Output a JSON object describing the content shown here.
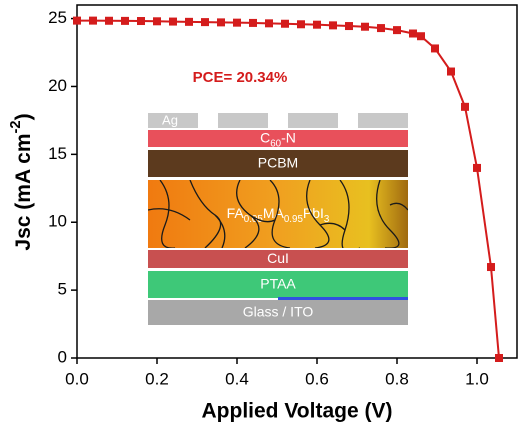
{
  "chart_data": {
    "type": "line",
    "x_label": "Applied Voltage (V)",
    "y_label": [
      "Jsc (mA cm",
      "-2",
      ")"
    ],
    "annotation": "PCE= 20.34%",
    "color": "#d41c1c",
    "series": [
      {
        "x": [
          0,
          0.04,
          0.08,
          0.12,
          0.16,
          0.2,
          0.24,
          0.28,
          0.32,
          0.36,
          0.4,
          0.44,
          0.48,
          0.52,
          0.56,
          0.6,
          0.64,
          0.68,
          0.72,
          0.76,
          0.8,
          0.84,
          0.86,
          0.895,
          0.935,
          0.97,
          1.0,
          1.035,
          1.055
        ],
        "values": [
          24.85,
          24.85,
          24.84,
          24.83,
          24.82,
          24.8,
          24.78,
          24.76,
          24.74,
          24.72,
          24.7,
          24.68,
          24.65,
          24.62,
          24.58,
          24.55,
          24.5,
          24.45,
          24.4,
          24.3,
          24.15,
          23.9,
          23.7,
          22.8,
          21.1,
          18.5,
          14.0,
          6.7,
          0
        ]
      }
    ],
    "xlim": [
      0,
      1.1
    ],
    "ylim": [
      0,
      26
    ],
    "xticks": [
      {
        "value": 0,
        "label": "0.0"
      },
      0.2,
      0.4,
      0.6,
      0.8,
      {
        "value": 1,
        "label": "1.0"
      }
    ],
    "yticks": [
      0,
      5,
      10,
      15,
      20,
      25
    ],
    "inset": {
      "electrode": "Ag",
      "layers": [
        [
          "C",
          "60",
          "-N"
        ],
        [
          "PCBM"
        ],
        [
          "FA",
          "0.05",
          "MA",
          "0.95",
          "PbI",
          "3"
        ],
        [
          "CuI"
        ],
        [
          "PTAA"
        ],
        [
          "Glass / ITO"
        ]
      ]
    }
  }
}
